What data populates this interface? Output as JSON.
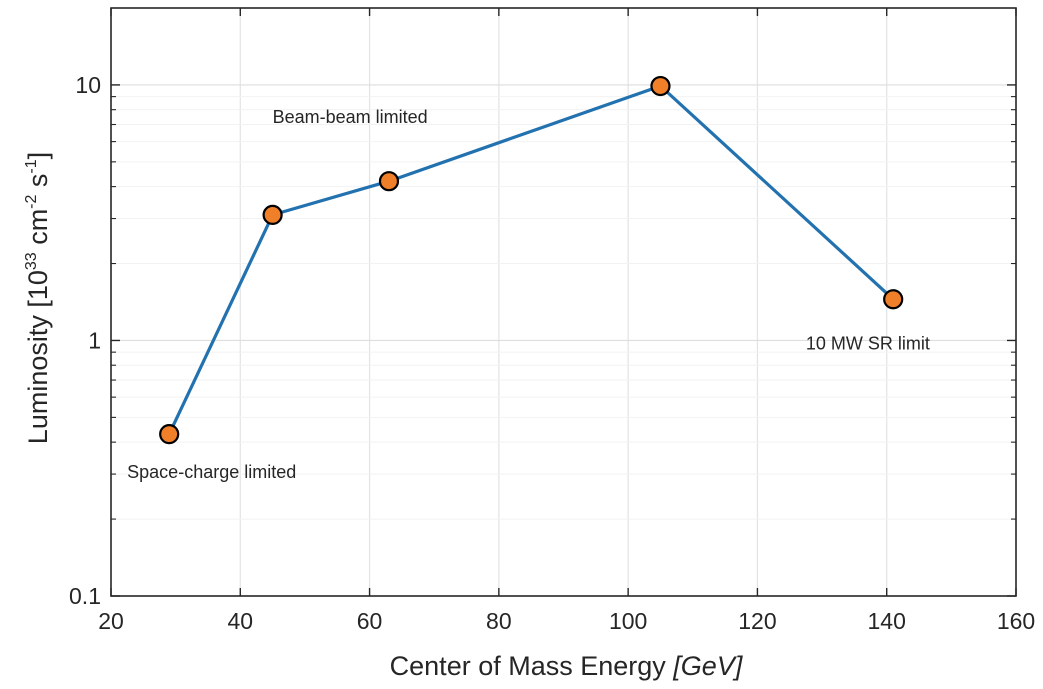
{
  "chart_data": {
    "type": "line",
    "title": "",
    "xlabel": "Center of Mass Energy",
    "xlabel_unit": "[GeV]",
    "ylabel": {
      "prefix": "Luminosity [10",
      "exp1": "33",
      "mid": " cm",
      "exp2": "-2",
      "mid2": " s",
      "exp3": "-1",
      "suffix": "]"
    },
    "xlim": [
      20,
      160
    ],
    "ylim": [
      0.1,
      20
    ],
    "y_scale": "log",
    "grid": true,
    "legend": "none",
    "x_ticks": [
      20,
      40,
      60,
      80,
      100,
      120,
      140,
      160
    ],
    "x_tick_labels": [
      "20",
      "40",
      "60",
      "80",
      "100",
      "120",
      "140",
      "160"
    ],
    "y_ticks": [
      0.1,
      1,
      10
    ],
    "y_tick_labels": [
      "0.1",
      "1",
      "10"
    ],
    "series": [
      {
        "x": [
          29,
          45,
          63,
          105,
          141
        ],
        "y": [
          0.43,
          3.1,
          4.2,
          9.9,
          1.45
        ],
        "line_color": "#2372b0",
        "marker_fill": "#f07f2a",
        "marker_edge": "#000000"
      }
    ],
    "annotations": [
      {
        "text": "Beam-beam limited",
        "x": 45,
        "y": 7.1
      },
      {
        "text": "Space-charge limited",
        "x": 22.5,
        "y": 0.29
      },
      {
        "text": "10 MW SR limit",
        "x": 127.5,
        "y": 0.92
      }
    ]
  }
}
